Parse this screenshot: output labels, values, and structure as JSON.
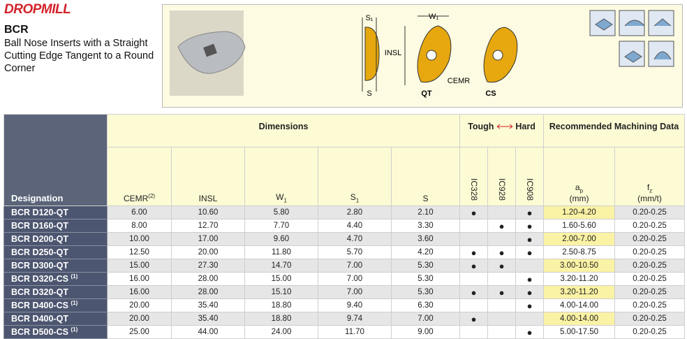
{
  "header": {
    "logo": "DROPMILL",
    "title": "BCR",
    "description": "Ball Nose Inserts with a Straight Cutting Edge Tangent to a Round Corner"
  },
  "diagram": {
    "labels": {
      "s1": "S₁",
      "w1": "W₁",
      "insl": "INSL",
      "cemr": "CEMR",
      "s": "S",
      "qt": "QT",
      "cs": "CS"
    }
  },
  "table": {
    "groups": {
      "dimensions": "Dimensions",
      "tough": "Tough",
      "hard": "Hard",
      "machining": "Recommended Machining Data"
    },
    "columns": [
      {
        "text": "Designation"
      },
      {
        "text": "CEMR",
        "sup": "(2)"
      },
      {
        "text": "INSL"
      },
      {
        "text": "W",
        "sub": "1"
      },
      {
        "text": "S",
        "sub": "1"
      },
      {
        "text": "S"
      },
      {
        "text": "IC328"
      },
      {
        "text": "IC928"
      },
      {
        "text": "IC908"
      },
      {
        "text": "a",
        "sub": "p",
        "unit": "(mm)"
      },
      {
        "text": "f",
        "sub": "z",
        "unit": "(mm/t)"
      }
    ],
    "rows": [
      {
        "designation": "BCR D120-QT",
        "cells": [
          "6.00",
          "10.60",
          "5.80",
          "2.80",
          "2.10",
          "●",
          null,
          "●",
          "1.20-4.20",
          "0.20-0.25"
        ]
      },
      {
        "designation": "BCR D160-QT",
        "cells": [
          "8.00",
          "12.70",
          "7.70",
          "4.40",
          "3.30",
          null,
          "●",
          "●",
          "1.60-5.60",
          "0.20-0.25"
        ]
      },
      {
        "designation": "BCR D200-QT",
        "cells": [
          "10.00",
          "17.00",
          "9.60",
          "4.70",
          "3.60",
          null,
          null,
          "●",
          "2.00-7.00",
          "0.20-0.25"
        ]
      },
      {
        "designation": "BCR D250-QT",
        "cells": [
          "12.50",
          "20.00",
          "11.80",
          "5.70",
          "4.20",
          "●",
          "●",
          "●",
          "2.50-8.75",
          "0.20-0.25"
        ]
      },
      {
        "designation": "BCR D300-QT",
        "cells": [
          "15.00",
          "27.30",
          "14.70",
          "7.00",
          "5.30",
          "●",
          "●",
          null,
          "3.00-10.50",
          "0.20-0.25"
        ]
      },
      {
        "designation": "BCR D320-CS",
        "note": "(1)",
        "cells": [
          "16.00",
          "28.00",
          "15.00",
          "7.00",
          "5.30",
          null,
          null,
          "●",
          "3.20-11.20",
          "0.20-0.25"
        ]
      },
      {
        "designation": "BCR D320-QT",
        "cells": [
          "16.00",
          "28.00",
          "15.10",
          "7.00",
          "5.30",
          "●",
          "●",
          "●",
          "3.20-11.20",
          "0.20-0.25"
        ]
      },
      {
        "designation": "BCR D400-CS",
        "note": "(1)",
        "cells": [
          "20.00",
          "35.40",
          "18.80",
          "9.40",
          "6.30",
          null,
          null,
          "●",
          "4.00-14.00",
          "0.20-0.25"
        ]
      },
      {
        "designation": "BCR D400-QT",
        "cells": [
          "20.00",
          "35.40",
          "18.80",
          "9.74",
          "7.00",
          "●",
          null,
          null,
          "4.00-14.00",
          "0.20-0.25"
        ]
      },
      {
        "designation": "BCR D500-CS",
        "note": "(1)",
        "cells": [
          "25.00",
          "44.00",
          "24.00",
          "11.70",
          "9.00",
          null,
          null,
          "●",
          "5.00-17.50",
          "0.20-0.25"
        ]
      }
    ]
  }
}
